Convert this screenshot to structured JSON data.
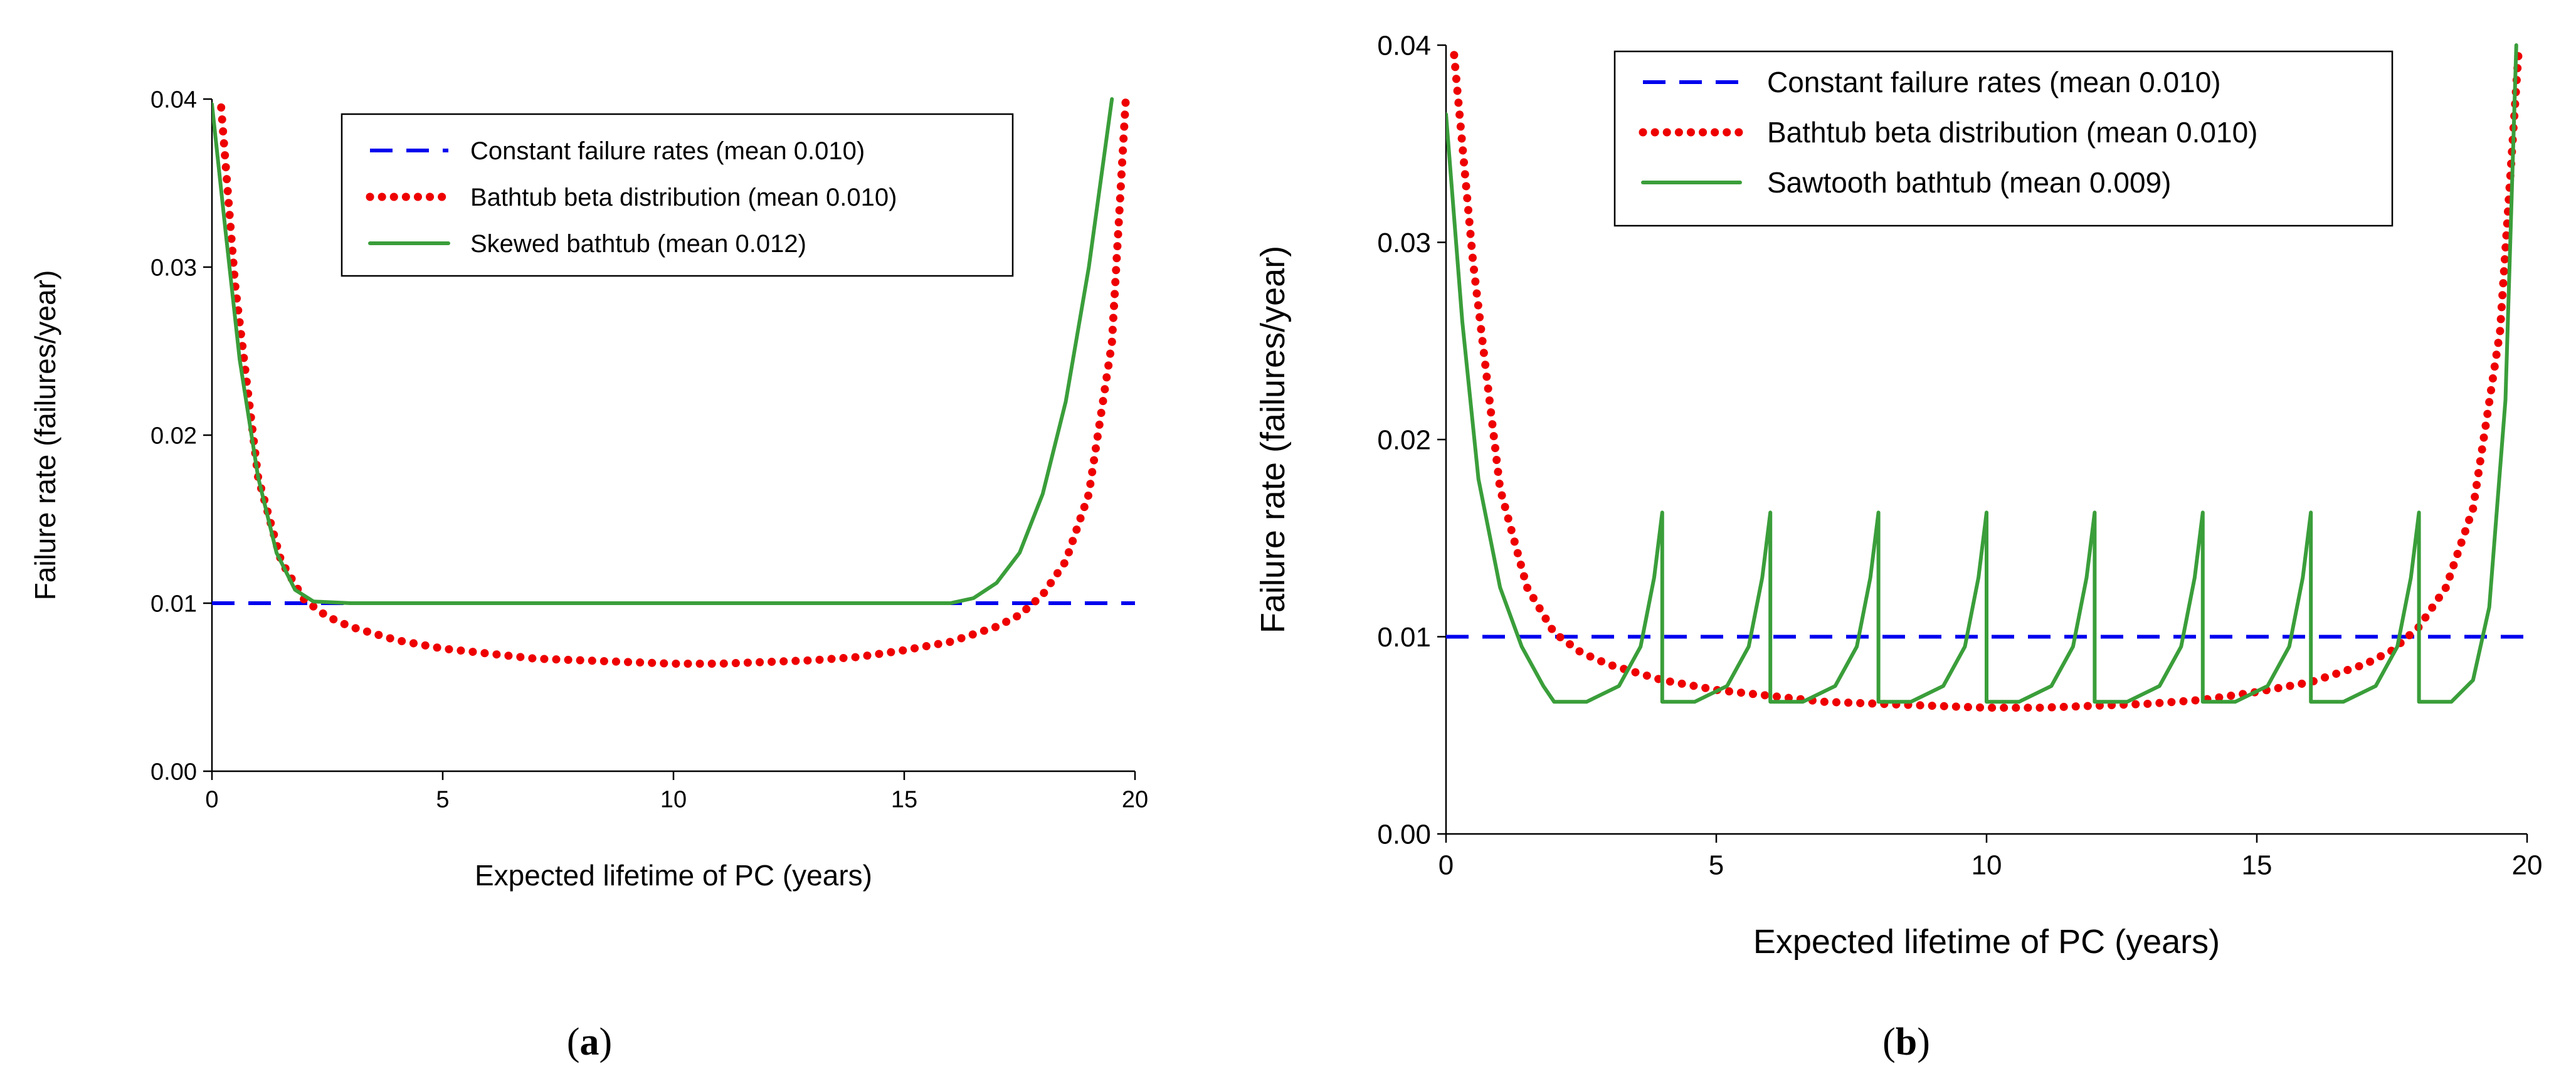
{
  "chart_data": [
    {
      "type": "line",
      "caption": "(a)",
      "caption_letter": "a",
      "xlabel": "Expected lifetime of PC (years)",
      "ylabel": "Failure rate (failures/year)",
      "xlim": [
        0,
        20
      ],
      "ylim": [
        0,
        0.04
      ],
      "x_ticks": [
        "0",
        "5",
        "10",
        "15",
        "20"
      ],
      "y_ticks": [
        "0.00",
        "0.01",
        "0.02",
        "0.03",
        "0.04"
      ],
      "grid": false,
      "legend_position": "top-center",
      "series": [
        {
          "name": "Constant failure rates (mean 0.010)",
          "style": "dashed",
          "color": "#0000ee",
          "x": [
            0,
            20
          ],
          "y": [
            0.01,
            0.01
          ]
        },
        {
          "name": "Bathtub beta distribution (mean 0.010)",
          "style": "dotted",
          "color": "#ee0000",
          "x": [
            0.2,
            0.5,
            1,
            1.5,
            2,
            2.5,
            3,
            4,
            5,
            6,
            7,
            8,
            9,
            10,
            11,
            12,
            13,
            14,
            15,
            16,
            17,
            17.5,
            18,
            18.5,
            19,
            19.5,
            19.8
          ],
          "y": [
            0.0395,
            0.029,
            0.0175,
            0.0125,
            0.0102,
            0.0092,
            0.0086,
            0.0078,
            0.0073,
            0.007,
            0.0067,
            0.0066,
            0.0065,
            0.0064,
            0.0064,
            0.0065,
            0.0066,
            0.0068,
            0.0072,
            0.0077,
            0.0086,
            0.0093,
            0.0105,
            0.0125,
            0.0165,
            0.0255,
            0.04
          ]
        },
        {
          "name": "Skewed bathtub (mean 0.012)",
          "style": "solid",
          "color": "#3a9e3a",
          "x": [
            0,
            0.3,
            0.6,
            1,
            1.4,
            1.8,
            2.2,
            3,
            5,
            10,
            15,
            16,
            16.5,
            17,
            17.5,
            18,
            18.5,
            19,
            19.3,
            19.5
          ],
          "y": [
            0.0397,
            0.032,
            0.0245,
            0.0175,
            0.013,
            0.0108,
            0.0101,
            0.01,
            0.01,
            0.01,
            0.01,
            0.01,
            0.0103,
            0.0112,
            0.013,
            0.0165,
            0.022,
            0.03,
            0.036,
            0.04
          ]
        }
      ]
    },
    {
      "type": "line",
      "caption": "(b)",
      "caption_letter": "b",
      "xlabel": "Expected lifetime of PC (years)",
      "ylabel": "Failure rate (failures/year)",
      "xlim": [
        0,
        20
      ],
      "ylim": [
        0,
        0.04
      ],
      "x_ticks": [
        "0",
        "5",
        "10",
        "15",
        "20"
      ],
      "y_ticks": [
        "0.00",
        "0.01",
        "0.02",
        "0.03",
        "0.04"
      ],
      "grid": false,
      "legend_position": "top-center",
      "series": [
        {
          "name": "Constant failure rates (mean 0.010)",
          "style": "dashed",
          "color": "#0000ee",
          "x": [
            0,
            20
          ],
          "y": [
            0.01,
            0.01
          ]
        },
        {
          "name": "Bathtub beta distribution (mean 0.010)",
          "style": "dotted",
          "color": "#ee0000",
          "x": [
            0.15,
            0.5,
            1,
            1.5,
            2,
            2.5,
            3,
            4,
            5,
            6,
            7,
            8,
            9,
            10,
            11,
            12,
            13,
            14,
            15,
            16,
            17,
            17.5,
            18,
            18.5,
            19,
            19.5,
            19.85
          ],
          "y": [
            0.0395,
            0.029,
            0.0175,
            0.0125,
            0.0102,
            0.0092,
            0.0086,
            0.0078,
            0.0073,
            0.007,
            0.0067,
            0.0066,
            0.0065,
            0.0064,
            0.0064,
            0.0065,
            0.0066,
            0.0068,
            0.0072,
            0.0077,
            0.0086,
            0.0093,
            0.0105,
            0.0125,
            0.0165,
            0.0255,
            0.04
          ]
        },
        {
          "name": "Sawtooth bathtub (mean 0.009)",
          "style": "solid",
          "color": "#3a9e3a",
          "x": [
            0,
            0.3,
            0.6,
            1,
            1.4,
            1.8,
            2,
            2.6,
            3.2,
            3.6,
            3.85,
            4,
            4,
            4.6,
            5.2,
            5.6,
            5.85,
            6,
            6,
            6.6,
            7.2,
            7.6,
            7.85,
            8,
            8,
            8.6,
            9.2,
            9.6,
            9.85,
            10,
            10,
            10.6,
            11.2,
            11.6,
            11.85,
            12,
            12,
            12.6,
            13.2,
            13.6,
            13.85,
            14,
            14,
            14.6,
            15.2,
            15.6,
            15.85,
            16,
            16,
            16.6,
            17.2,
            17.6,
            17.85,
            18,
            18,
            18.6,
            19.0,
            19.3,
            19.6,
            19.8
          ],
          "y": [
            0.0365,
            0.026,
            0.018,
            0.0125,
            0.0095,
            0.0075,
            0.0067,
            0.0067,
            0.0075,
            0.0095,
            0.013,
            0.0163,
            0.0067,
            0.0067,
            0.0075,
            0.0095,
            0.013,
            0.0163,
            0.0067,
            0.0067,
            0.0075,
            0.0095,
            0.013,
            0.0163,
            0.0067,
            0.0067,
            0.0075,
            0.0095,
            0.013,
            0.0163,
            0.0067,
            0.0067,
            0.0075,
            0.0095,
            0.013,
            0.0163,
            0.0067,
            0.0067,
            0.0075,
            0.0095,
            0.013,
            0.0163,
            0.0067,
            0.0067,
            0.0075,
            0.0095,
            0.013,
            0.0163,
            0.0067,
            0.0067,
            0.0075,
            0.0095,
            0.013,
            0.0163,
            0.0067,
            0.0067,
            0.0078,
            0.0115,
            0.022,
            0.04
          ]
        }
      ]
    }
  ]
}
